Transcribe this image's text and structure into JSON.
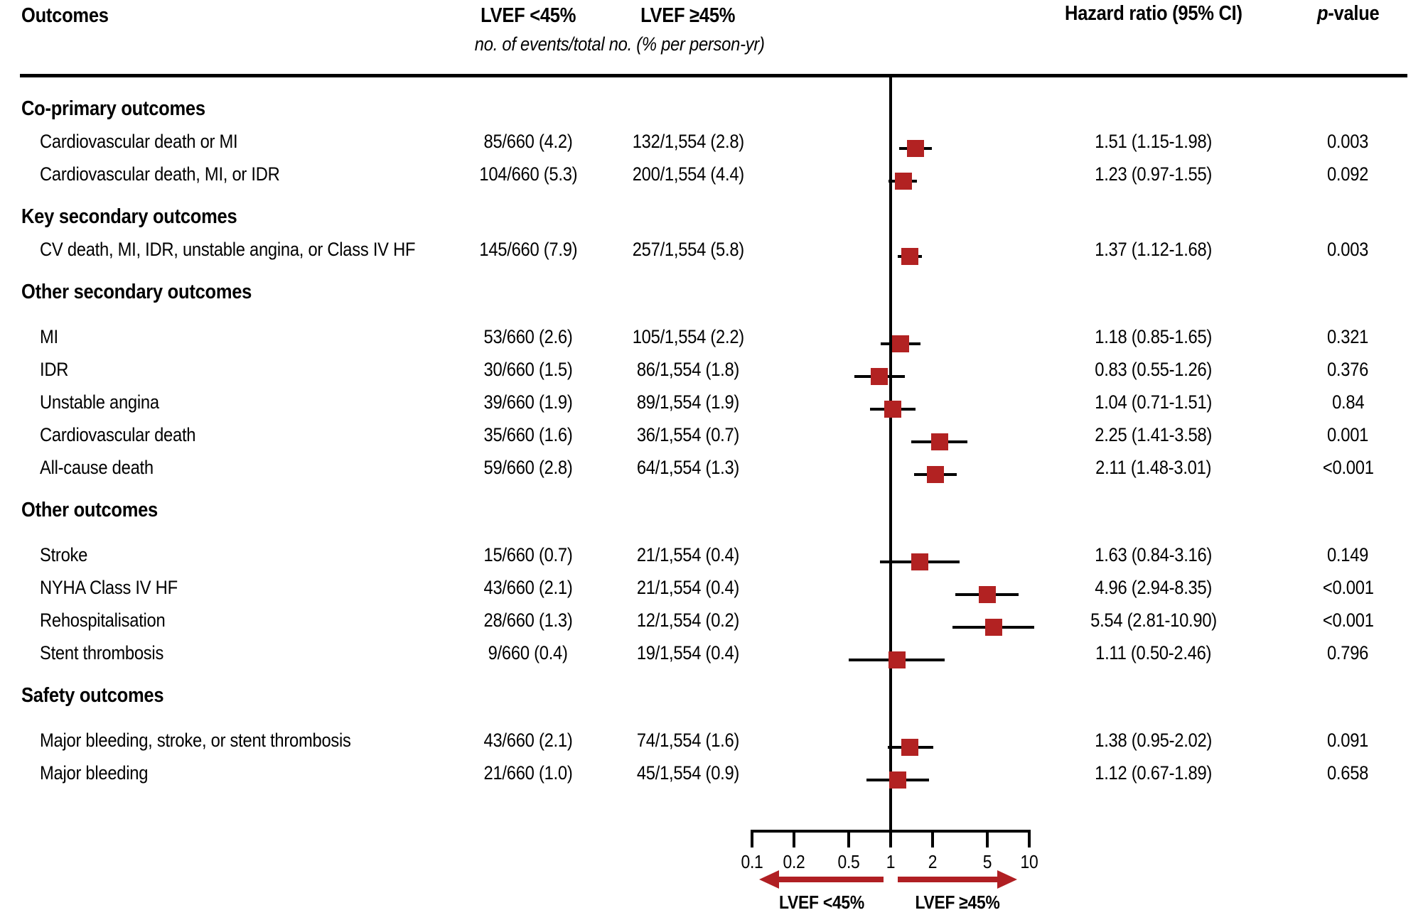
{
  "colors": {
    "marker": "#b22222",
    "arrow": "#b01f23",
    "line": "#000000"
  },
  "chart_data": {
    "type": "forest",
    "x_scale": "log10",
    "x_min": 0.1,
    "x_max": 10,
    "reference_line": 1,
    "ticks": [
      0.1,
      0.2,
      0.5,
      1,
      2,
      5,
      10
    ],
    "tick_labels": [
      "0.1",
      "0.2",
      "0.5",
      "1",
      "2",
      "5",
      "10"
    ],
    "columns": {
      "outcomes": "Outcomes",
      "group1": "LVEF <45%",
      "group2": "LVEF ≥45%",
      "subtitle": "no. of events/total no. (% per person-yr)",
      "hazard": "Hazard ratio (95% CI)",
      "p_italic": "p",
      "p_rest": "-value"
    },
    "axis_labels": {
      "left_arrow": "LVEF <45%",
      "right_arrow": "LVEF ≥45%"
    },
    "sections": [
      {
        "title": "Co-primary outcomes",
        "rows": [
          {
            "label": "Cardiovascular death or MI",
            "lvef_lt45": "85/660 (4.2)",
            "lvef_ge45": "132/1,554 (2.8)",
            "hr": 1.51,
            "ci_low": 1.15,
            "ci_high": 1.98,
            "hr_text": "1.51 (1.15-1.98)",
            "p": "0.003"
          },
          {
            "label": "Cardiovascular death, MI, or IDR",
            "lvef_lt45": "104/660 (5.3)",
            "lvef_ge45": "200/1,554 (4.4)",
            "hr": 1.23,
            "ci_low": 0.97,
            "ci_high": 1.55,
            "hr_text": "1.23 (0.97-1.55)",
            "p": "0.092"
          }
        ]
      },
      {
        "title": "Key secondary outcomes",
        "rows": [
          {
            "label": "CV death, MI, IDR, unstable angina, or Class IV HF",
            "lvef_lt45": "145/660 (7.9)",
            "lvef_ge45": "257/1,554 (5.8)",
            "hr": 1.37,
            "ci_low": 1.12,
            "ci_high": 1.68,
            "hr_text": "1.37 (1.12-1.68)",
            "p": "0.003"
          }
        ]
      },
      {
        "title": "Other secondary outcomes",
        "rows": [
          {
            "label": "MI",
            "lvef_lt45": "53/660 (2.6)",
            "lvef_ge45": "105/1,554 (2.2)",
            "hr": 1.18,
            "ci_low": 0.85,
            "ci_high": 1.65,
            "hr_text": "1.18 (0.85-1.65)",
            "p": "0.321"
          },
          {
            "label": "IDR",
            "lvef_lt45": "30/660 (1.5)",
            "lvef_ge45": "86/1,554 (1.8)",
            "hr": 0.83,
            "ci_low": 0.55,
            "ci_high": 1.26,
            "hr_text": "0.83 (0.55-1.26)",
            "p": "0.376"
          },
          {
            "label": "Unstable angina",
            "lvef_lt45": "39/660 (1.9)",
            "lvef_ge45": "89/1,554 (1.9)",
            "hr": 1.04,
            "ci_low": 0.71,
            "ci_high": 1.51,
            "hr_text": "1.04 (0.71-1.51)",
            "p": "0.84"
          },
          {
            "label": "Cardiovascular death",
            "lvef_lt45": "35/660 (1.6)",
            "lvef_ge45": "36/1,554 (0.7)",
            "hr": 2.25,
            "ci_low": 1.41,
            "ci_high": 3.58,
            "hr_text": "2.25 (1.41-3.58)",
            "p": "0.001"
          },
          {
            "label": "All-cause death",
            "lvef_lt45": "59/660 (2.8)",
            "lvef_ge45": "64/1,554 (1.3)",
            "hr": 2.11,
            "ci_low": 1.48,
            "ci_high": 3.01,
            "hr_text": "2.11 (1.48-3.01)",
            "p": "<0.001"
          }
        ]
      },
      {
        "title": "Other outcomes",
        "rows": [
          {
            "label": "Stroke",
            "lvef_lt45": "15/660 (0.7)",
            "lvef_ge45": "21/1,554 (0.4)",
            "hr": 1.63,
            "ci_low": 0.84,
            "ci_high": 3.16,
            "hr_text": "1.63 (0.84-3.16)",
            "p": "0.149"
          },
          {
            "label": "NYHA Class IV HF",
            "lvef_lt45": "43/660 (2.1)",
            "lvef_ge45": "21/1,554 (0.4)",
            "hr": 4.96,
            "ci_low": 2.94,
            "ci_high": 8.35,
            "hr_text": "4.96 (2.94-8.35)",
            "p": "<0.001"
          },
          {
            "label": "Rehospitalisation",
            "lvef_lt45": "28/660 (1.3)",
            "lvef_ge45": "12/1,554 (0.2)",
            "hr": 5.54,
            "ci_low": 2.81,
            "ci_high": 10.9,
            "hr_text": "5.54 (2.81-10.90)",
            "p": "<0.001"
          },
          {
            "label": "Stent thrombosis",
            "lvef_lt45": "9/660 (0.4)",
            "lvef_ge45": "19/1,554 (0.4)",
            "hr": 1.11,
            "ci_low": 0.5,
            "ci_high": 2.46,
            "hr_text": "1.11 (0.50-2.46)",
            "p": "0.796"
          }
        ]
      },
      {
        "title": "Safety outcomes",
        "rows": [
          {
            "label": "Major bleeding, stroke, or stent thrombosis",
            "lvef_lt45": "43/660 (2.1)",
            "lvef_ge45": "74/1,554 (1.6)",
            "hr": 1.38,
            "ci_low": 0.95,
            "ci_high": 2.02,
            "hr_text": "1.38 (0.95-2.02)",
            "p": "0.091"
          },
          {
            "label": "Major bleeding",
            "lvef_lt45": "21/660 (1.0)",
            "lvef_ge45": "45/1,554 (0.9)",
            "hr": 1.12,
            "ci_low": 0.67,
            "ci_high": 1.89,
            "hr_text": "1.12 (0.67-1.89)",
            "p": "0.658"
          }
        ]
      }
    ]
  }
}
